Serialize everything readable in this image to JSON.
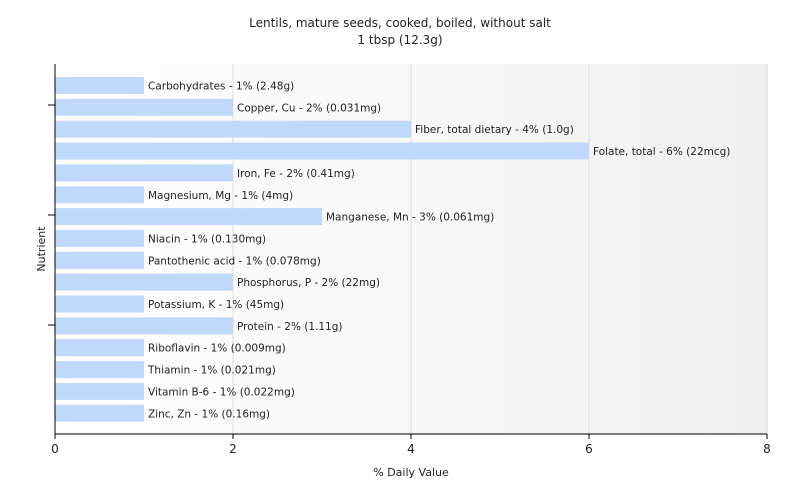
{
  "chart_data": {
    "type": "bar",
    "orientation": "horizontal",
    "title": "Lentils, mature seeds, cooked, boiled, without salt",
    "subtitle": "1 tbsp (12.3g)",
    "xlabel": "% Daily Value",
    "ylabel": "Nutrient",
    "xlim": [
      0,
      8
    ],
    "xticks": [
      0,
      2,
      4,
      6,
      8
    ],
    "grid": true,
    "bar_color": "#c0d8fa",
    "categories": [
      "Carbohydrates - 1% (2.48g)",
      "Copper, Cu - 2% (0.031mg)",
      "Fiber, total dietary - 4% (1.0g)",
      "Folate, total - 6% (22mcg)",
      "Iron, Fe - 2% (0.41mg)",
      "Magnesium, Mg - 1% (4mg)",
      "Manganese, Mn - 3% (0.061mg)",
      "Niacin - 1% (0.130mg)",
      "Pantothenic acid - 1% (0.078mg)",
      "Phosphorus, P - 2% (22mg)",
      "Potassium, K - 1% (45mg)",
      "Protein - 2% (1.11g)",
      "Riboflavin - 1% (0.009mg)",
      "Thiamin - 1% (0.021mg)",
      "Vitamin B-6 - 1% (0.022mg)",
      "Zinc, Zn - 1% (0.16mg)"
    ],
    "values": [
      1,
      2,
      4,
      6,
      2,
      1,
      3,
      1,
      1,
      2,
      1,
      2,
      1,
      1,
      1,
      1
    ]
  }
}
